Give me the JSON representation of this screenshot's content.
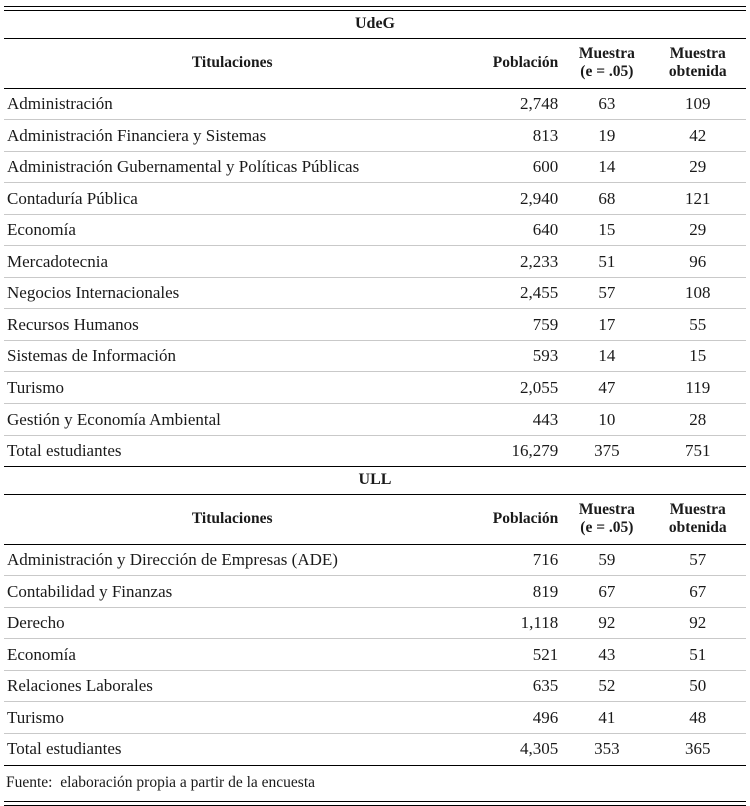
{
  "note": "Fuente:  elaboración propia a partir de la encuesta",
  "chart_data": [
    {
      "type": "table",
      "title": "UdeG",
      "columns": [
        {
          "lines": [
            "Titulaciones"
          ]
        },
        {
          "lines": [
            "Población"
          ]
        },
        {
          "lines": [
            "Muestra",
            "(e = .05)"
          ]
        },
        {
          "lines": [
            "Muestra",
            "obtenida"
          ]
        }
      ],
      "rows": [
        [
          "Administración",
          "2,748",
          "63",
          "109"
        ],
        [
          "Administración Financiera y Sistemas",
          "813",
          "19",
          "42"
        ],
        [
          "Administración Gubernamental y Políticas Públicas",
          "600",
          "14",
          "29"
        ],
        [
          "Contaduría Pública",
          "2,940",
          "68",
          "121"
        ],
        [
          "Economía",
          "640",
          "15",
          "29"
        ],
        [
          "Mercadotecnia",
          "2,233",
          "51",
          "96"
        ],
        [
          "Negocios Internacionales",
          "2,455",
          "57",
          "108"
        ],
        [
          "Recursos Humanos",
          "759",
          "17",
          "55"
        ],
        [
          "Sistemas de Información",
          "593",
          "14",
          "15"
        ],
        [
          "Turismo",
          "2,055",
          "47",
          "119"
        ],
        [
          "Gestión y Economía Ambiental",
          "443",
          "10",
          "28"
        ]
      ],
      "total": [
        "Total estudiantes",
        "16,279",
        "375",
        "751"
      ]
    },
    {
      "type": "table",
      "title": "ULL",
      "columns": [
        {
          "lines": [
            "Titulaciones"
          ]
        },
        {
          "lines": [
            "Población"
          ]
        },
        {
          "lines": [
            "Muestra",
            "(e = .05)"
          ]
        },
        {
          "lines": [
            "Muestra",
            "obtenida"
          ]
        }
      ],
      "rows": [
        [
          "Administración y Dirección de Empresas (ADE)",
          "716",
          "59",
          "57"
        ],
        [
          "Contabilidad y Finanzas",
          "819",
          "67",
          "67"
        ],
        [
          "Derecho",
          "1,118",
          "92",
          "92"
        ],
        [
          "Economía",
          "521",
          "43",
          "51"
        ],
        [
          "Relaciones Laborales",
          "635",
          "52",
          "50"
        ],
        [
          "Turismo",
          "496",
          "41",
          "48"
        ]
      ],
      "total": [
        "Total estudiantes",
        "4,305",
        "353",
        "365"
      ]
    }
  ]
}
